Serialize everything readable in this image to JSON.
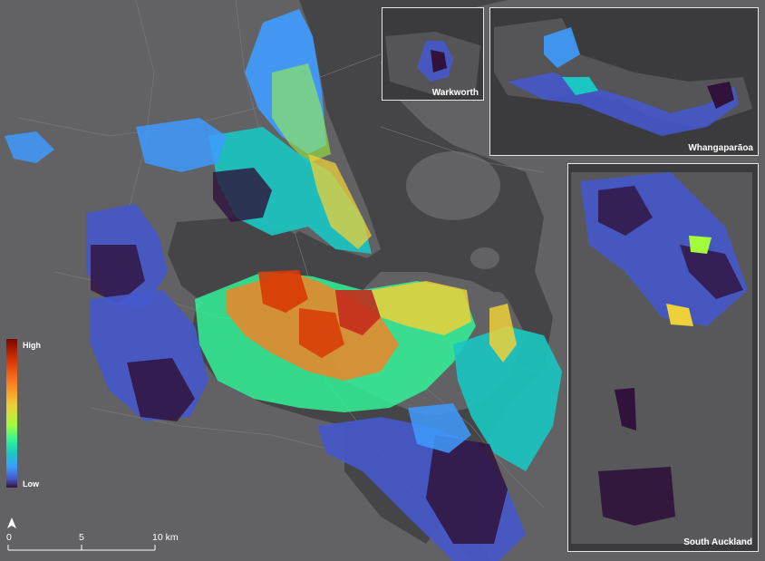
{
  "map": {
    "insets": [
      {
        "id": "warkworth",
        "label": "Warkworth"
      },
      {
        "id": "whangaparaoa",
        "label": "Whangaparāoa"
      },
      {
        "id": "south-auckland",
        "label": "South Auckland"
      }
    ],
    "legend": {
      "high_label": "High",
      "low_label": "Low",
      "colors": [
        "#7a0403",
        "#d93806",
        "#fb8022",
        "#edd03a",
        "#a2fc3c",
        "#32f298",
        "#1ac7c2",
        "#3e9bfe",
        "#4559cb",
        "#30123b"
      ]
    },
    "scale_bar": {
      "ticks": [
        "0",
        "5",
        "10 km"
      ]
    },
    "north_arrow": "north-arrow-icon",
    "colors": {
      "land": "#626264",
      "water": "#454547",
      "roads": "#7a7a7c",
      "inset_border": "#e6e6e6",
      "low_value": "#2d1a4a",
      "high_value": "#c42b1b"
    }
  }
}
